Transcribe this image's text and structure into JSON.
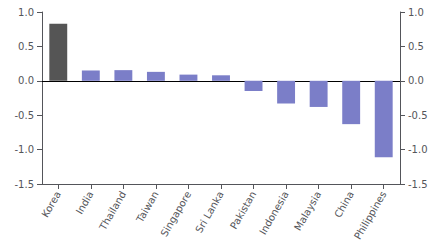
{
  "chart_data": {
    "type": "bar",
    "categories": [
      "Korea",
      "India",
      "Thailand",
      "Taiwan",
      "Singapore",
      "Sri Lanka",
      "Pakistan",
      "Indonesia",
      "Malaysia",
      "China",
      "Philippines"
    ],
    "values": [
      0.83,
      0.15,
      0.155,
      0.13,
      0.09,
      0.08,
      -0.15,
      -0.33,
      -0.38,
      -0.63,
      -1.11
    ],
    "colors": [
      "#555555",
      "#7b7ec8",
      "#7b7ec8",
      "#7b7ec8",
      "#7b7ec8",
      "#7b7ec8",
      "#7b7ec8",
      "#7b7ec8",
      "#7b7ec8",
      "#7b7ec8",
      "#7b7ec8"
    ],
    "ylim": [
      -1.5,
      1.0
    ],
    "yticks": [
      -1.5,
      {
        "value": -1.0,
        "label": "-1.0"
      },
      -0.5,
      {
        "value": 0.0,
        "label": "0.0"
      },
      0.5,
      {
        "value": 1.0,
        "label": "1.0"
      }
    ],
    "y2lim": [
      -1.5,
      1.0
    ],
    "y2ticks": [
      -1.5,
      {
        "value": -1.0,
        "label": "-1.0"
      },
      -0.5,
      {
        "value": 0.0,
        "label": "0.0"
      },
      0.5,
      {
        "value": 1.0,
        "label": "1.0"
      }
    ],
    "grid": false
  }
}
